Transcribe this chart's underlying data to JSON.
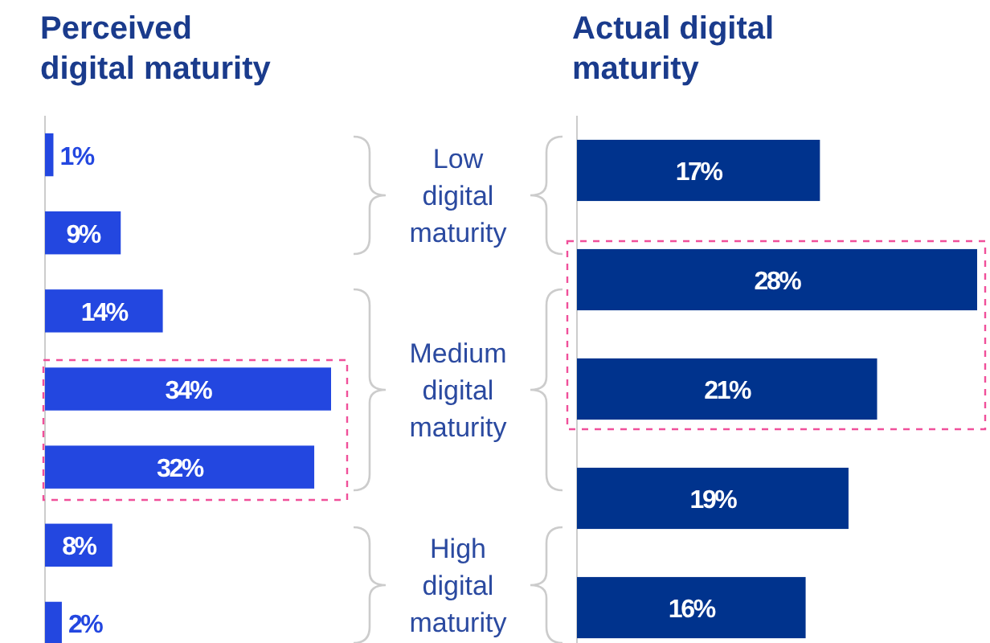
{
  "chart_data": [
    {
      "type": "bar",
      "orientation": "horizontal",
      "title": "Perceived digital maturity",
      "categories": [
        null,
        null,
        null,
        null,
        null,
        null,
        null
      ],
      "values": [
        1,
        9,
        14,
        34,
        32,
        8,
        2
      ],
      "value_labels": [
        "1%",
        "9%",
        "14%",
        "34%",
        "32%",
        "8%",
        "2%"
      ],
      "color": "#2347e0",
      "annotations": [
        "Low digital maturity",
        "Medium digital maturity",
        "High digital maturity"
      ]
    },
    {
      "type": "bar",
      "orientation": "horizontal",
      "title": "Actual digital maturity",
      "categories": [
        null,
        null,
        null,
        null,
        null
      ],
      "values": [
        17,
        28,
        21,
        19,
        16
      ],
      "value_labels": [
        "17%",
        "28%",
        "21%",
        "19%",
        "16%"
      ],
      "color": "#00338d"
    }
  ]
}
